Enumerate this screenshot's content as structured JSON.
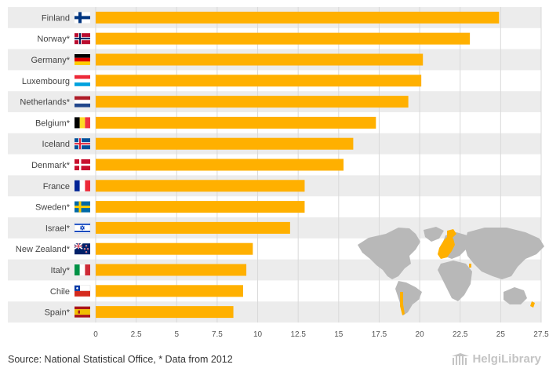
{
  "chart_data": {
    "type": "bar",
    "orientation": "horizontal",
    "title": "",
    "xlabel": "",
    "ylabel": "",
    "xlim": [
      0,
      27.5
    ],
    "xticks": [
      "0",
      "2.5",
      "5",
      "7.5",
      "10",
      "12.5",
      "15",
      "17.5",
      "20",
      "22.5",
      "25",
      "27.5"
    ],
    "grid": true,
    "bar_color": "#ffb000",
    "categories": [
      "Finland",
      "Norway*",
      "Germany*",
      "Luxembourg",
      "Netherlands*",
      "Belgium*",
      "Iceland",
      "Denmark*",
      "France",
      "Sweden*",
      "Israel*",
      "New Zealand*",
      "Italy*",
      "Chile",
      "Spain*"
    ],
    "flag_icons": [
      "finland-flag-icon",
      "norway-flag-icon",
      "germany-flag-icon",
      "luxembourg-flag-icon",
      "netherlands-flag-icon",
      "belgium-flag-icon",
      "iceland-flag-icon",
      "denmark-flag-icon",
      "france-flag-icon",
      "sweden-flag-icon",
      "israel-flag-icon",
      "new-zealand-flag-icon",
      "italy-flag-icon",
      "chile-flag-icon",
      "spain-flag-icon"
    ],
    "values": [
      24.9,
      23.1,
      20.2,
      20.1,
      19.3,
      17.3,
      15.9,
      15.3,
      12.9,
      12.9,
      12.0,
      9.7,
      9.3,
      9.1,
      8.5
    ]
  },
  "footer": {
    "source": "Source: National Statistical Office, * Data from 2012",
    "brand": "HelgiLibrary"
  }
}
